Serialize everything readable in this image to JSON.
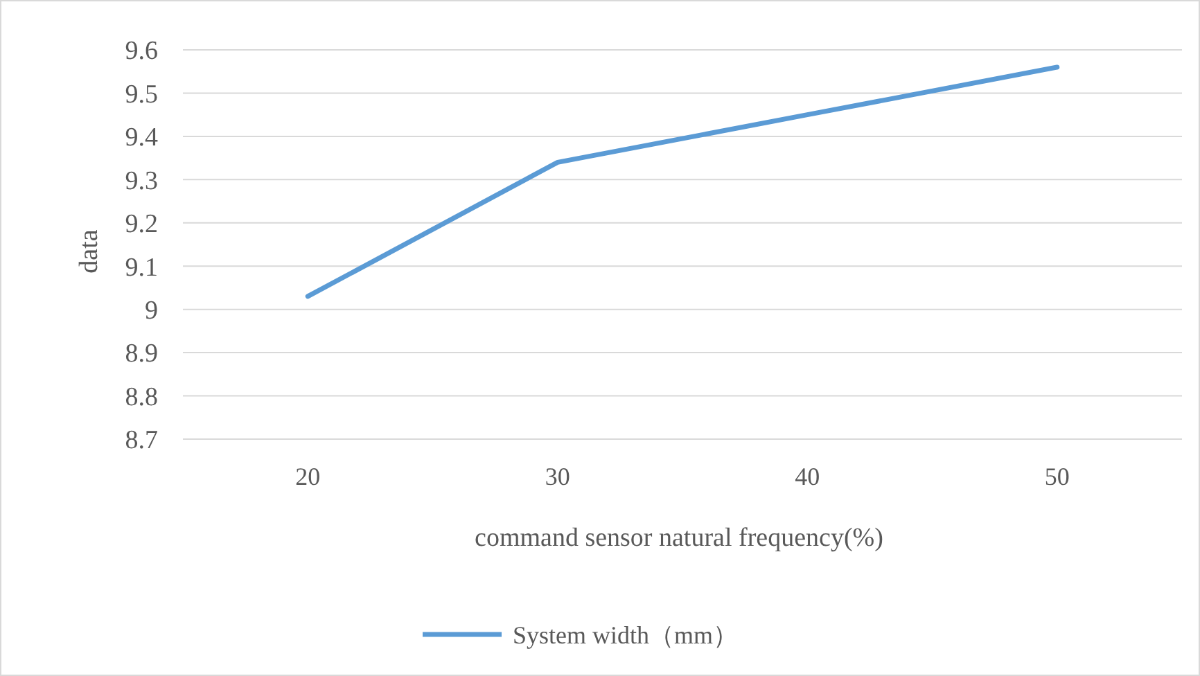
{
  "chart_data": {
    "type": "line",
    "xlabel": "command sensor natural frequency(%)",
    "ylabel": "data",
    "categories": [
      "20",
      "30",
      "40",
      "50"
    ],
    "series": [
      {
        "name": "System width（mm）",
        "color": "#5b9bd5",
        "values": [
          9.03,
          9.34,
          9.45,
          9.56
        ]
      }
    ],
    "ylim": [
      8.7,
      9.6
    ],
    "yticks": [
      9.6,
      9.5,
      9.4,
      9.3,
      9.2,
      9.1,
      {
        "value": 9,
        "label": "9"
      },
      8.9,
      8.8,
      8.7
    ],
    "grid": "y",
    "legend": "bottom",
    "marker": "none"
  }
}
